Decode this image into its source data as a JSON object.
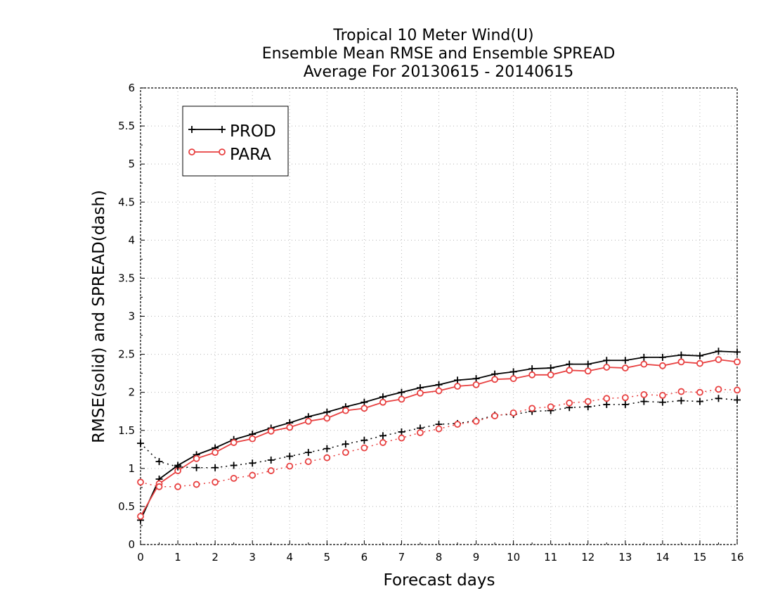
{
  "chart_data": {
    "type": "line",
    "title": [
      "Tropical 10 Meter Wind(U)",
      "Ensemble Mean RMSE and Ensemble SPREAD",
      "Average For 20130615 - 20140615"
    ],
    "xlabel": "Forecast days",
    "ylabel": "RMSE(solid) and SPREAD(dash)",
    "xlim": [
      0,
      16
    ],
    "ylim": [
      0,
      6
    ],
    "xticks": [
      "0",
      "1",
      "2",
      "3",
      "4",
      "5",
      "6",
      "7",
      "8",
      "9",
      "10",
      "11",
      "12",
      "13",
      "14",
      "15",
      "16"
    ],
    "yticks": [
      "0",
      "0.5",
      "1",
      "1.5",
      "2",
      "2.5",
      "3",
      "3.5",
      "4",
      "4.5",
      "5",
      "5.5",
      "6"
    ],
    "grid": true,
    "legend_position": "top-left",
    "x": [
      0,
      0.5,
      1,
      1.5,
      2,
      2.5,
      3,
      3.5,
      4,
      4.5,
      5,
      5.5,
      6,
      6.5,
      7,
      7.5,
      8,
      8.5,
      9,
      9.5,
      10,
      10.5,
      11,
      11.5,
      12,
      12.5,
      13,
      13.5,
      14,
      14.5,
      15,
      15.5,
      16
    ],
    "series": [
      {
        "name": "PROD",
        "color": "#000000",
        "marker": "plus",
        "metric": "RMSE",
        "style": "solid",
        "values": [
          0.32,
          0.86,
          1.04,
          1.18,
          1.27,
          1.38,
          1.45,
          1.53,
          1.6,
          1.68,
          1.74,
          1.81,
          1.87,
          1.94,
          2.0,
          2.06,
          2.1,
          2.16,
          2.18,
          2.24,
          2.27,
          2.31,
          2.32,
          2.37,
          2.37,
          2.42,
          2.42,
          2.46,
          2.46,
          2.49,
          2.48,
          2.54,
          2.53
        ]
      },
      {
        "name": "PARA",
        "color": "#e84040",
        "marker": "circle",
        "metric": "RMSE",
        "style": "solid",
        "values": [
          0.37,
          0.8,
          0.97,
          1.13,
          1.21,
          1.34,
          1.39,
          1.49,
          1.54,
          1.62,
          1.66,
          1.76,
          1.79,
          1.87,
          1.91,
          1.99,
          2.02,
          2.08,
          2.1,
          2.17,
          2.18,
          2.23,
          2.23,
          2.29,
          2.28,
          2.33,
          2.32,
          2.37,
          2.35,
          2.4,
          2.38,
          2.43,
          2.4
        ]
      },
      {
        "name": "PROD",
        "color": "#000000",
        "marker": "plus",
        "metric": "SPREAD",
        "style": "dash",
        "values": [
          1.33,
          1.09,
          1.02,
          1.01,
          1.01,
          1.04,
          1.07,
          1.11,
          1.16,
          1.21,
          1.26,
          1.32,
          1.37,
          1.43,
          1.48,
          1.53,
          1.58,
          1.59,
          1.63,
          1.7,
          1.71,
          1.75,
          1.76,
          1.8,
          1.81,
          1.84,
          1.84,
          1.88,
          1.87,
          1.89,
          1.88,
          1.92,
          1.9
        ]
      },
      {
        "name": "PARA",
        "color": "#e84040",
        "marker": "circle",
        "metric": "SPREAD",
        "style": "dash",
        "values": [
          0.82,
          0.76,
          0.76,
          0.79,
          0.82,
          0.87,
          0.91,
          0.97,
          1.03,
          1.09,
          1.14,
          1.21,
          1.27,
          1.34,
          1.4,
          1.47,
          1.52,
          1.58,
          1.62,
          1.69,
          1.73,
          1.79,
          1.81,
          1.86,
          1.88,
          1.92,
          1.93,
          1.97,
          1.96,
          2.01,
          2.0,
          2.04,
          2.03
        ]
      }
    ],
    "legend": [
      {
        "name": "PROD",
        "color": "#000000",
        "marker": "plus"
      },
      {
        "name": "PARA",
        "color": "#e84040",
        "marker": "circle"
      }
    ]
  }
}
